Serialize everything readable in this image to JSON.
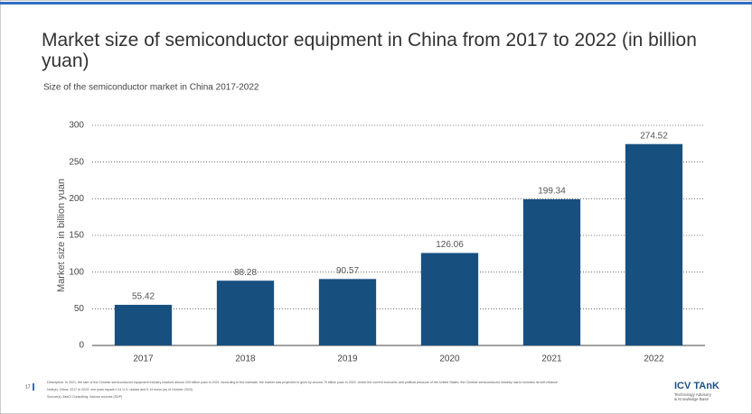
{
  "chart_data": {
    "type": "bar",
    "title": "Market size of semiconductor equipment in China from 2017 to 2022 (in billion yuan)",
    "subtitle": "Size of the semiconductor market in China 2017-2022",
    "y_label": "Market size in billion yuan",
    "categories": [
      "2017",
      "2018",
      "2019",
      "2020",
      "2021",
      "2022"
    ],
    "values": [
      55.42,
      88.28,
      90.57,
      126.06,
      199.34,
      274.52
    ],
    "color": "#17507f",
    "ylim": [
      0,
      300
    ],
    "yticks": [
      0,
      50,
      100,
      150,
      200,
      250,
      300
    ],
    "grid": true
  },
  "footer": {
    "page_number": "17",
    "description": "Description: In 2021, the size of the Chinese semiconductor equipment industry reached almost 200 billion yuan in 2021. According to the estimate, the market was projected to grow by around 75 billion yuan in 2022. Under the current economic and political pressure of the United States, the Chinese semiconductor industry has to increase its self-reliance.",
    "note": "Note(s): China; 2017 to 2022; one yuan equals 0.14 U.S. dollars and 0.14 euros (as of October 2023)",
    "source": "Source(s): AskCI Consulting; Various sources (SDP)",
    "logo": "ICV TAnK",
    "logo_sub_1": "Technology Advisory",
    "logo_sub_2": "& Knowledge Base"
  }
}
